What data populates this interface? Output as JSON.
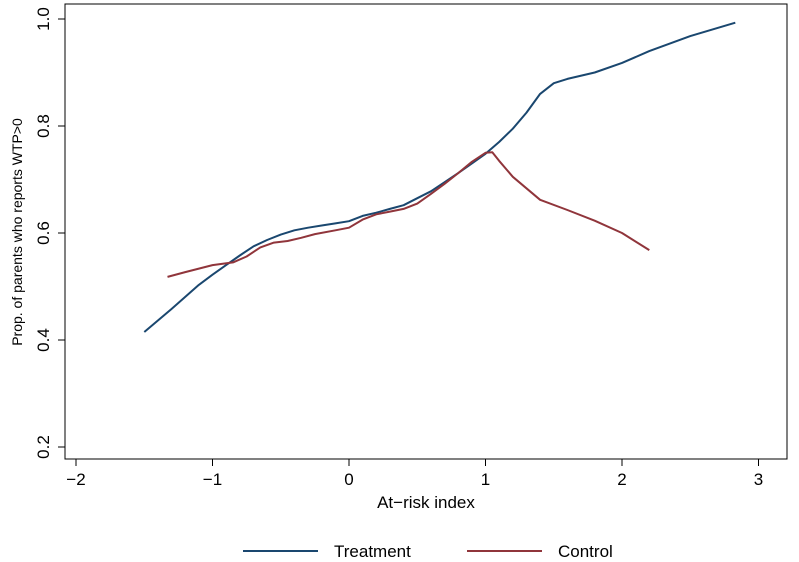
{
  "chart_data": {
    "type": "line",
    "title": "",
    "xlabel": "At−risk index",
    "ylabel": "Prop. of parents who reports WTP>0",
    "xlim": [
      -2,
      3.1
    ],
    "ylim": [
      0.2,
      1.0
    ],
    "xticks": [
      -2,
      -1,
      0,
      1,
      2,
      3
    ],
    "xtick_labels": [
      "−2",
      "−1",
      "0",
      "1",
      "2",
      "3"
    ],
    "yticks": [
      0.2,
      0.4,
      0.6,
      0.8,
      1.0
    ],
    "ytick_labels": [
      "0.2",
      "0.4",
      "0.6",
      "0.8",
      "1.0"
    ],
    "grid": false,
    "legend_position": "bottom",
    "series": [
      {
        "name": "Treatment",
        "color": "#1a476f",
        "x": [
          -1.5,
          -1.3,
          -1.1,
          -1.0,
          -0.9,
          -0.8,
          -0.7,
          -0.6,
          -0.5,
          -0.4,
          -0.3,
          -0.2,
          -0.1,
          0.0,
          0.1,
          0.2,
          0.3,
          0.4,
          0.5,
          0.6,
          0.7,
          0.8,
          0.9,
          1.0,
          1.1,
          1.2,
          1.3,
          1.4,
          1.5,
          1.6,
          1.8,
          2.0,
          2.2,
          2.5,
          2.83
        ],
        "y": [
          0.415,
          0.458,
          0.503,
          0.522,
          0.54,
          0.558,
          0.575,
          0.587,
          0.597,
          0.605,
          0.61,
          0.614,
          0.618,
          0.622,
          0.632,
          0.638,
          0.645,
          0.652,
          0.665,
          0.678,
          0.695,
          0.712,
          0.73,
          0.748,
          0.77,
          0.795,
          0.825,
          0.86,
          0.88,
          0.888,
          0.9,
          0.918,
          0.94,
          0.968,
          0.993
        ]
      },
      {
        "name": "Control",
        "color": "#90353b",
        "x": [
          -1.33,
          -1.2,
          -1.0,
          -0.85,
          -0.75,
          -0.65,
          -0.55,
          -0.45,
          -0.35,
          -0.25,
          -0.1,
          0.0,
          0.1,
          0.2,
          0.3,
          0.4,
          0.5,
          0.6,
          0.7,
          0.8,
          0.9,
          1.0,
          1.05,
          1.1,
          1.2,
          1.4,
          1.6,
          1.8,
          2.0,
          2.2
        ],
        "y": [
          0.518,
          0.527,
          0.54,
          0.545,
          0.556,
          0.573,
          0.582,
          0.585,
          0.591,
          0.598,
          0.605,
          0.61,
          0.625,
          0.635,
          0.64,
          0.645,
          0.655,
          0.673,
          0.692,
          0.712,
          0.733,
          0.75,
          0.751,
          0.735,
          0.705,
          0.662,
          0.643,
          0.623,
          0.6,
          0.568
        ]
      }
    ]
  }
}
